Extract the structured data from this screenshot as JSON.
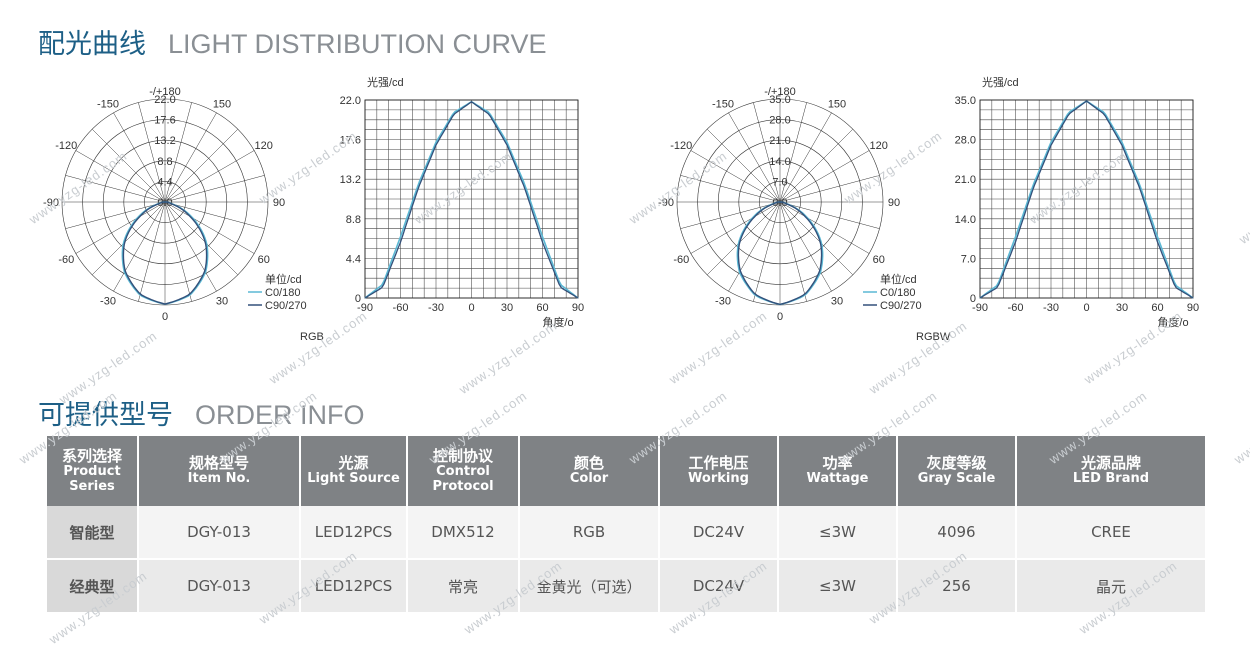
{
  "section1": {
    "title_cn": "配光曲线",
    "title_en": "LIGHT DISTRIBUTION CURVE"
  },
  "section2": {
    "title_cn": "可提供型号",
    "title_en": "ORDER INFO"
  },
  "watermark": "www.yzg-led.com",
  "charts": [
    {
      "type": "polar",
      "caption": "RGB",
      "angle_labels": [
        "-/+180",
        "-150",
        "150",
        "-120",
        "120",
        "-90",
        "90",
        "-60",
        "60",
        "-30",
        "30",
        "0"
      ],
      "radial_labels": [
        "22.0",
        "17.6",
        "13.2",
        "8.8",
        "4.4",
        "0.0"
      ],
      "rmax": 22.0,
      "legend": {
        "unit": "单位/cd",
        "c0": "C0/180",
        "c90": "C90/270"
      },
      "colors": {
        "c0": "#5bb8d4",
        "c90": "#33507a"
      }
    },
    {
      "type": "line",
      "ylabel": "光强/cd",
      "xlabel": "角度/o",
      "y_ticks": [
        "22.0",
        "17.6",
        "13.2",
        "8.8",
        "4.4",
        "0"
      ],
      "x_ticks": [
        "-90",
        "-60",
        "-30",
        "0",
        "30",
        "60",
        "90"
      ],
      "ymax": 22.0,
      "peak": 22.0
    },
    {
      "type": "polar",
      "caption": "RGBW",
      "angle_labels": [
        "-/+180",
        "-150",
        "150",
        "-120",
        "120",
        "-90",
        "90",
        "-60",
        "60",
        "-30",
        "30",
        "0"
      ],
      "radial_labels": [
        "35.0",
        "28.0",
        "21.0",
        "14.0",
        "7.0",
        "0.0"
      ],
      "rmax": 35.0,
      "legend": {
        "unit": "单位/cd",
        "c0": "C0/180",
        "c90": "C90/270"
      },
      "colors": {
        "c0": "#5bb8d4",
        "c90": "#33507a"
      }
    },
    {
      "type": "line",
      "ylabel": "光强/cd",
      "xlabel": "角度/o",
      "y_ticks": [
        "35.0",
        "28.0",
        "21.0",
        "14.0",
        "7.0",
        "0"
      ],
      "x_ticks": [
        "-90",
        "-60",
        "-30",
        "0",
        "30",
        "60",
        "90"
      ],
      "ymax": 35.0,
      "peak": 35.0
    }
  ],
  "chart_data": [
    {
      "type": "polar",
      "caption": "RGB",
      "unit": "cd",
      "rmax": 22.0,
      "series": [
        {
          "name": "C0/180",
          "angles": [
            -90,
            -75,
            -60,
            -45,
            -30,
            -15,
            0,
            15,
            30,
            45,
            60,
            75,
            90
          ],
          "values": [
            0,
            1.5,
            6.8,
            12.6,
            17.3,
            20.6,
            21.8,
            20.6,
            17.3,
            12.6,
            6.8,
            1.5,
            0
          ]
        },
        {
          "name": "C90/270",
          "angles": [
            -90,
            -75,
            -60,
            -45,
            -30,
            -15,
            0,
            15,
            30,
            45,
            60,
            75,
            90
          ],
          "values": [
            0,
            1.2,
            6.2,
            12.2,
            17.0,
            20.4,
            21.8,
            20.4,
            17.0,
            12.2,
            6.2,
            1.2,
            0
          ]
        }
      ]
    },
    {
      "type": "line",
      "ylabel": "光强/cd",
      "xlabel": "角度/o",
      "xlim": [
        -90,
        90
      ],
      "ylim": [
        0,
        22.0
      ],
      "series": [
        {
          "name": "C0/180",
          "x": [
            -90,
            -75,
            -60,
            -45,
            -30,
            -15,
            0,
            15,
            30,
            45,
            60,
            75,
            90
          ],
          "values": [
            0,
            1.5,
            6.8,
            12.6,
            17.3,
            20.6,
            21.8,
            20.6,
            17.3,
            12.6,
            6.8,
            1.5,
            0
          ]
        },
        {
          "name": "C90/270",
          "x": [
            -90,
            -75,
            -60,
            -45,
            -30,
            -15,
            0,
            15,
            30,
            45,
            60,
            75,
            90
          ],
          "values": [
            0,
            1.2,
            6.2,
            12.2,
            17.0,
            20.4,
            21.8,
            20.4,
            17.0,
            12.2,
            6.2,
            1.2,
            0
          ]
        }
      ]
    },
    {
      "type": "polar",
      "caption": "RGBW",
      "unit": "cd",
      "rmax": 35.0,
      "series": [
        {
          "name": "C0/180",
          "angles": [
            -90,
            -75,
            -60,
            -45,
            -30,
            -15,
            0,
            15,
            30,
            45,
            60,
            75,
            90
          ],
          "values": [
            0,
            2.3,
            10.8,
            20.0,
            27.5,
            32.8,
            34.8,
            32.8,
            27.5,
            20.0,
            10.8,
            2.3,
            0
          ]
        },
        {
          "name": "C90/270",
          "angles": [
            -90,
            -75,
            -60,
            -45,
            -30,
            -15,
            0,
            15,
            30,
            45,
            60,
            75,
            90
          ],
          "values": [
            0,
            1.9,
            9.9,
            19.4,
            27.0,
            32.5,
            34.8,
            32.5,
            27.0,
            19.4,
            9.9,
            1.9,
            0
          ]
        }
      ]
    },
    {
      "type": "line",
      "ylabel": "光强/cd",
      "xlabel": "角度/o",
      "xlim": [
        -90,
        90
      ],
      "ylim": [
        0,
        35.0
      ],
      "series": [
        {
          "name": "C0/180",
          "x": [
            -90,
            -75,
            -60,
            -45,
            -30,
            -15,
            0,
            15,
            30,
            45,
            60,
            75,
            90
          ],
          "values": [
            0,
            2.3,
            10.8,
            20.0,
            27.5,
            32.8,
            34.8,
            32.8,
            27.5,
            20.0,
            10.8,
            2.3,
            0
          ]
        },
        {
          "name": "C90/270",
          "x": [
            -90,
            -75,
            -60,
            -45,
            -30,
            -15,
            0,
            15,
            30,
            45,
            60,
            75,
            90
          ],
          "values": [
            0,
            1.9,
            9.9,
            19.4,
            27.0,
            32.5,
            34.8,
            32.5,
            27.0,
            19.4,
            9.9,
            1.9,
            0
          ]
        }
      ]
    }
  ],
  "table": {
    "headers": [
      {
        "cn": "系列选择",
        "en": "Product Series"
      },
      {
        "cn": "规格型号",
        "en": "Item No."
      },
      {
        "cn": "光源",
        "en": "Light Source"
      },
      {
        "cn": "控制协议",
        "en": "Control Protocol"
      },
      {
        "cn": "颜色",
        "en": "Color"
      },
      {
        "cn": "工作电压",
        "en": "Working"
      },
      {
        "cn": "功率",
        "en": "Wattage"
      },
      {
        "cn": "灰度等级",
        "en": "Gray Scale"
      },
      {
        "cn": "光源品牌",
        "en": "LED Brand"
      }
    ],
    "rows": [
      [
        "智能型",
        "DGY-013",
        "LED12PCS",
        "DMX512",
        "RGB",
        "DC24V",
        "≤3W",
        "4096",
        "CREE"
      ],
      [
        "经典型",
        "DGY-013",
        "LED12PCS",
        "常亮",
        "金黄光（可选）",
        "DC24V",
        "≤3W",
        "256",
        "晶元"
      ]
    ]
  }
}
